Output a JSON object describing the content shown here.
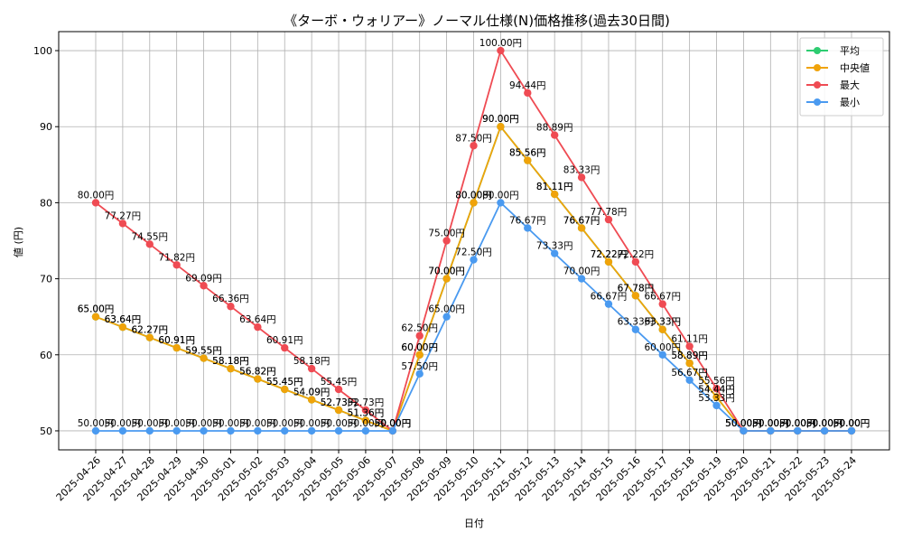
{
  "chart_data": {
    "type": "line",
    "title": "《ターボ・ウォリアー》ノーマル仕様(N)価格推移(過去30日間)",
    "xlabel": "日付",
    "ylabel": "値 (円)",
    "ylim": [
      47.5,
      102.5
    ],
    "yticks": [
      50,
      60,
      70,
      80,
      90,
      100
    ],
    "grid": true,
    "legend_position": "top-right",
    "label_suffix": "円",
    "categories": [
      "2025-04-26",
      "2025-04-27",
      "2025-04-28",
      "2025-04-29",
      "2025-04-30",
      "2025-05-01",
      "2025-05-02",
      "2025-05-03",
      "2025-05-04",
      "2025-05-05",
      "2025-05-06",
      "2025-05-07",
      "2025-05-08",
      "2025-05-09",
      "2025-05-10",
      "2025-05-11",
      "2025-05-12",
      "2025-05-13",
      "2025-05-14",
      "2025-05-15",
      "2025-05-16",
      "2025-05-17",
      "2025-05-18",
      "2025-05-19",
      "2025-05-20",
      "2025-05-21",
      "2025-05-22",
      "2025-05-23",
      "2025-05-24"
    ],
    "series": [
      {
        "name": "平均",
        "color": "#2ecc71",
        "values": [
          65.0,
          63.64,
          62.27,
          60.91,
          59.55,
          58.18,
          56.82,
          55.45,
          54.09,
          52.73,
          51.36,
          50.0,
          60.0,
          70.0,
          80.0,
          90.0,
          85.56,
          81.11,
          76.67,
          72.22,
          67.78,
          63.33,
          58.89,
          54.44,
          50.0,
          50.0,
          50.0,
          50.0,
          50.0
        ]
      },
      {
        "name": "中央値",
        "color": "#f0a30a",
        "values": [
          65.0,
          63.64,
          62.27,
          60.91,
          59.55,
          58.18,
          56.82,
          55.45,
          54.09,
          52.73,
          51.36,
          50.0,
          60.0,
          70.0,
          80.0,
          90.0,
          85.56,
          81.11,
          76.67,
          72.22,
          67.78,
          63.33,
          58.89,
          54.44,
          50.0,
          50.0,
          50.0,
          50.0,
          50.0
        ]
      },
      {
        "name": "最大",
        "color": "#ef4b53",
        "values": [
          80.0,
          77.27,
          74.55,
          71.82,
          69.09,
          66.36,
          63.64,
          60.91,
          58.18,
          55.45,
          52.73,
          50.0,
          62.5,
          75.0,
          87.5,
          100.0,
          94.44,
          88.89,
          83.33,
          77.78,
          72.22,
          66.67,
          61.11,
          55.56,
          50.0,
          50.0,
          50.0,
          50.0,
          50.0
        ]
      },
      {
        "name": "最小",
        "color": "#4a9af0",
        "values": [
          50.0,
          50.0,
          50.0,
          50.0,
          50.0,
          50.0,
          50.0,
          50.0,
          50.0,
          50.0,
          50.0,
          50.0,
          57.5,
          65.0,
          72.5,
          80.0,
          76.67,
          73.33,
          70.0,
          66.67,
          63.33,
          60.0,
          56.67,
          53.33,
          50.0,
          50.0,
          50.0,
          50.0,
          50.0
        ]
      }
    ]
  }
}
